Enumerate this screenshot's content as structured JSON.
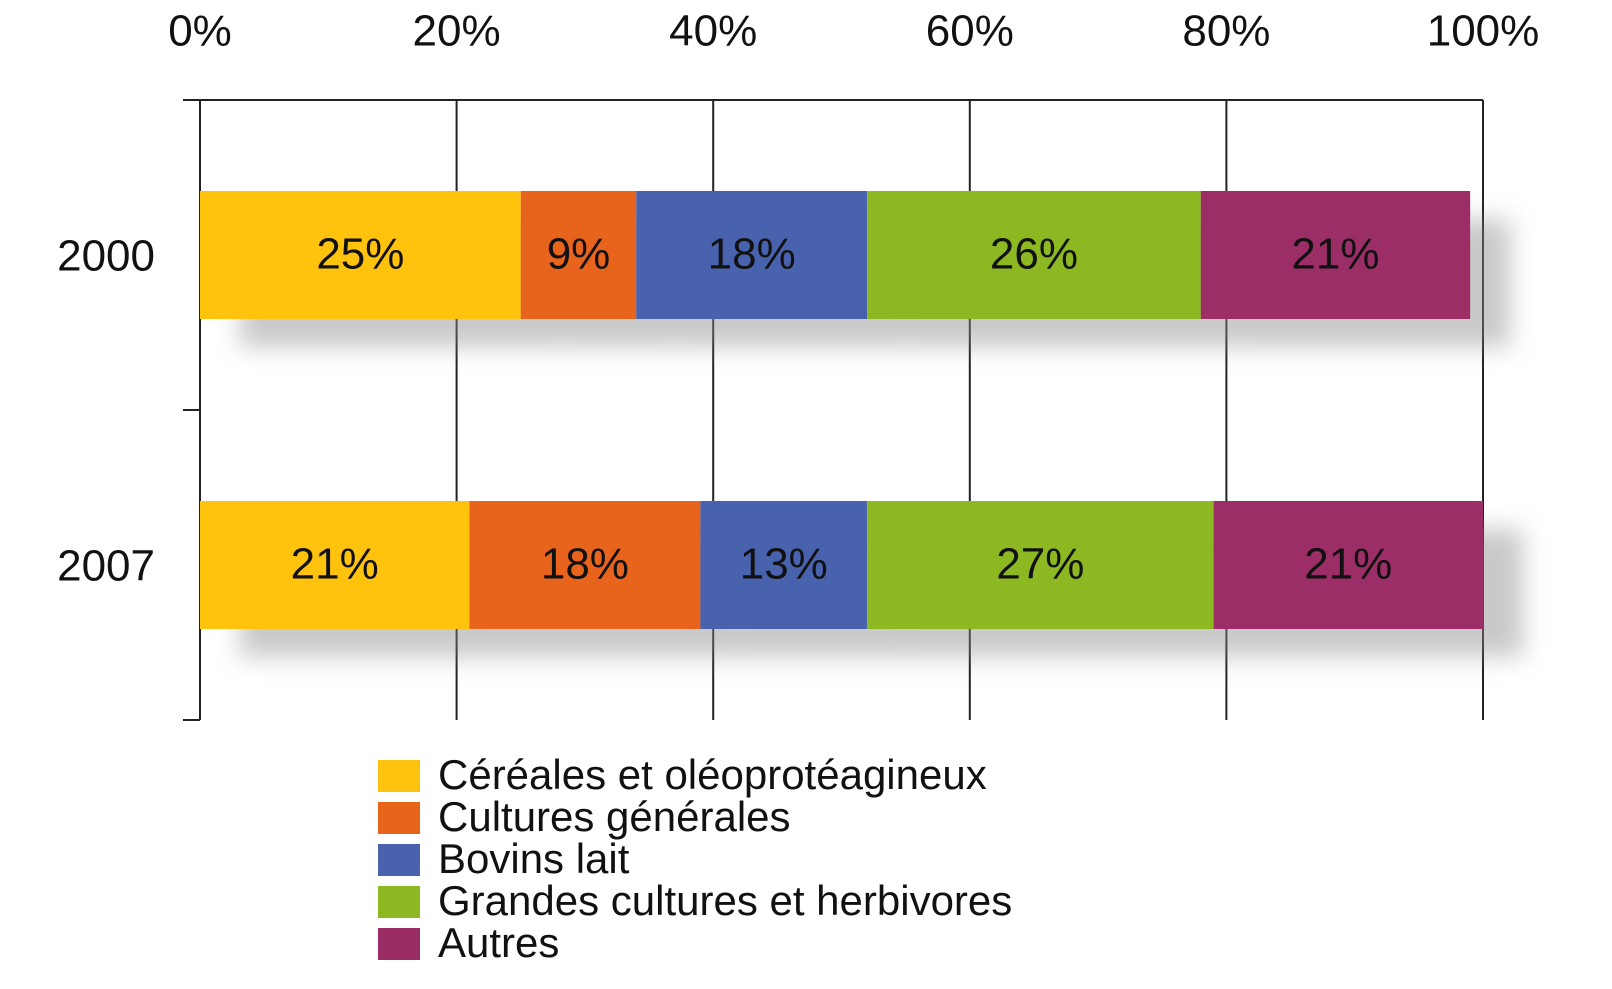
{
  "chart_data": {
    "type": "stacked-bar-horizontal",
    "categories": [
      "2000",
      "2007"
    ],
    "series": [
      {
        "name": "Céréales et oléoprotéagineux",
        "color": "#ffc20e",
        "values": [
          25,
          21
        ],
        "value_labels": [
          "25%",
          "21%"
        ]
      },
      {
        "name": "Cultures générales",
        "color": "#e8641b",
        "values": [
          9,
          18
        ],
        "value_labels": [
          "9%",
          "18%"
        ]
      },
      {
        "name": "Bovins lait",
        "color": "#4a62ad",
        "values": [
          18,
          13
        ],
        "value_labels": [
          "18%",
          "13%"
        ]
      },
      {
        "name": "Grandes cultures et herbivores",
        "color": "#8db822",
        "values": [
          26,
          27
        ],
        "value_labels": [
          "26%",
          "27%"
        ]
      },
      {
        "name": "Autres",
        "color": "#9b2d66",
        "values": [
          21,
          21
        ],
        "value_labels": [
          "21%",
          "21%"
        ]
      }
    ],
    "xlim": [
      0,
      100
    ],
    "xticks": [
      {
        "value": 0,
        "label": "0%"
      },
      {
        "value": 20,
        "label": "20%"
      },
      {
        "value": 40,
        "label": "40%"
      },
      {
        "value": 60,
        "label": "60%"
      },
      {
        "value": 80,
        "label": "80%"
      },
      {
        "value": 100,
        "label": "100%"
      }
    ],
    "grid": true,
    "legend": "bottom"
  }
}
